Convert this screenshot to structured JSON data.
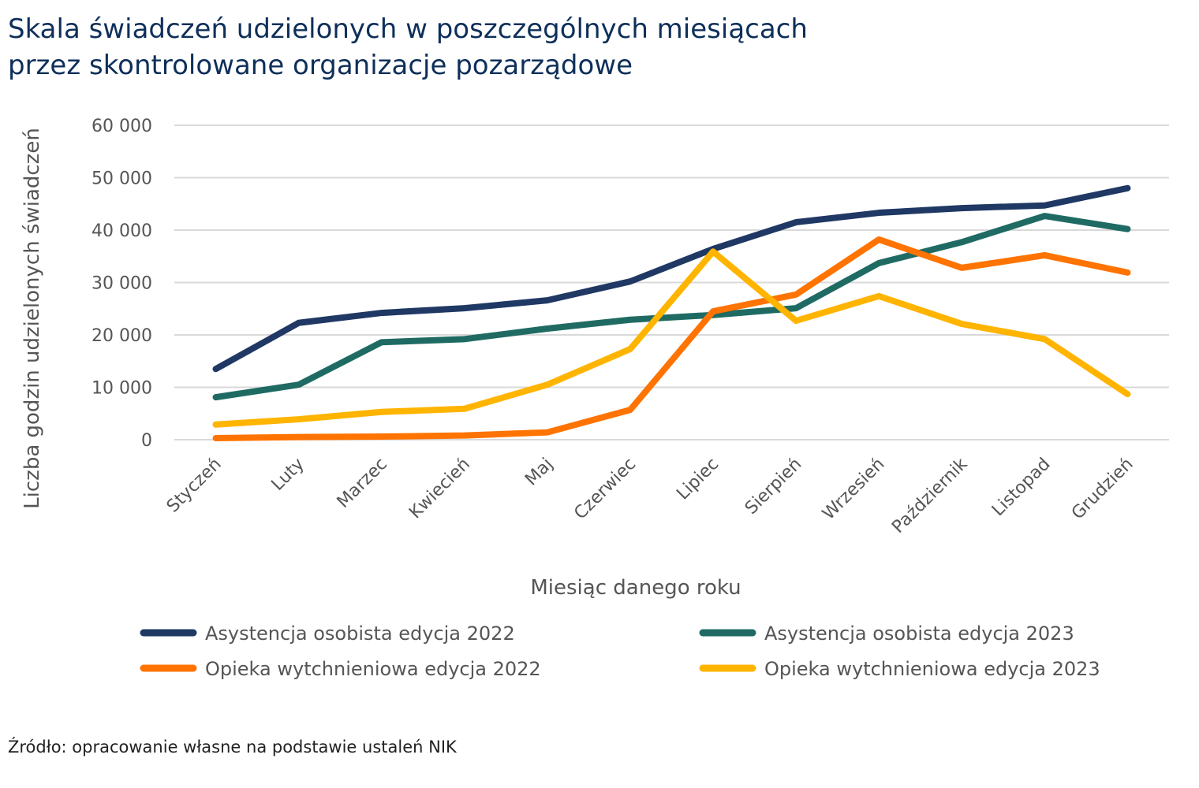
{
  "title_line1": "Skala świadczeń udzielonych w poszczególnych miesiącach",
  "title_line2": "przez skontrolowane organizacje pozarządowe",
  "source": "Źródło: opracowanie własne na podstawie ustaleń NIK",
  "chart_data": {
    "type": "line",
    "title": "Skala świadczeń udzielonych w poszczególnych miesiącach przez skontrolowane organizacje pozarządowe",
    "xlabel": "Miesiąc danego roku",
    "ylabel": "Liczba godzin udzielonych świadczeń",
    "ylim": [
      0,
      60000
    ],
    "yticks": [
      0,
      10000,
      20000,
      30000,
      40000,
      50000,
      60000
    ],
    "ytick_labels": [
      "0",
      "10 000",
      "20 000",
      "30 000",
      "40 000",
      "50 000",
      "60 000"
    ],
    "grid": true,
    "legend_position": "bottom",
    "categories": [
      "Styczeń",
      "Luty",
      "Marzec",
      "Kwiecień",
      "Maj",
      "Czerwiec",
      "Lipiec",
      "Sierpień",
      "Wrzesień",
      "Październik",
      "Listopad",
      "Grudzień"
    ],
    "series": [
      {
        "name": "Asystencja osobista edycja 2022",
        "color": "#1f3864",
        "values": [
          13500,
          22300,
          24200,
          25100,
          26600,
          30200,
          36400,
          41500,
          43300,
          44200,
          44700,
          48000
        ]
      },
      {
        "name": "Asystencja osobista edycja 2023",
        "color": "#1f6b63",
        "values": [
          8100,
          10500,
          18600,
          19200,
          21200,
          22900,
          23800,
          25100,
          33700,
          37700,
          42700,
          40200
        ]
      },
      {
        "name": "Opieka wytchnieniowa edycja 2022",
        "color": "#ff7300",
        "values": [
          300,
          500,
          600,
          800,
          1400,
          5700,
          24500,
          27700,
          38200,
          32800,
          35200,
          31900
        ]
      },
      {
        "name": "Opieka wytchnieniowa edycja 2023",
        "color": "#ffb400",
        "values": [
          2900,
          3900,
          5300,
          5900,
          10500,
          17300,
          35900,
          22700,
          27400,
          22100,
          19200,
          8700
        ]
      }
    ]
  }
}
